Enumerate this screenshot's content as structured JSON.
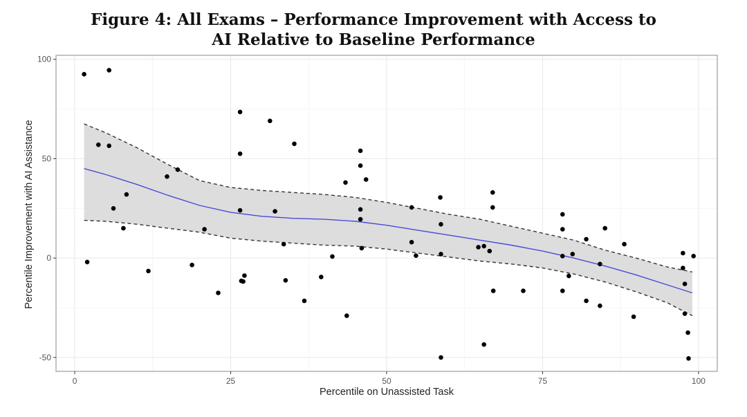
{
  "title": {
    "line1": "Figure 4: All Exams – Performance Improvement with Access to",
    "line2": "AI Relative to Baseline Performance"
  },
  "chart_data": {
    "type": "scatter",
    "title": "Figure 4: All Exams – Performance Improvement with Access to AI Relative to Baseline Performance",
    "xlabel": "Percentile on Unassisted Task",
    "ylabel": "Percentile Improvement with AI Assistance",
    "xlim": [
      -3,
      103
    ],
    "ylim": [
      -57,
      102
    ],
    "x_ticks": [
      0,
      25,
      50,
      75,
      100
    ],
    "y_ticks": [
      -50,
      0,
      50,
      100
    ],
    "grid": true,
    "colors": {
      "points": "#000000",
      "fit_line": "#4a4ad8",
      "ribbon": "#d9d9d9",
      "band_lines": "#333333",
      "panel_border": "#888888",
      "grid": "#ebebeb"
    },
    "points": [
      [
        1.5,
        92.5
      ],
      [
        2,
        -2
      ],
      [
        3.8,
        57
      ],
      [
        5.5,
        94.5
      ],
      [
        5.5,
        56.5
      ],
      [
        6.2,
        25
      ],
      [
        7.8,
        15
      ],
      [
        8.3,
        32
      ],
      [
        11.8,
        -6.5
      ],
      [
        14.8,
        41
      ],
      [
        16.5,
        44.5
      ],
      [
        18.8,
        -3.5
      ],
      [
        20.8,
        14.5
      ],
      [
        23,
        -17.5
      ],
      [
        26.5,
        24
      ],
      [
        26.5,
        52.5
      ],
      [
        26.5,
        73.5
      ],
      [
        26.7,
        -11.5
      ],
      [
        27,
        -11.8
      ],
      [
        27.2,
        -8.8
      ],
      [
        31.3,
        69
      ],
      [
        32.1,
        23.5
      ],
      [
        33.5,
        7
      ],
      [
        33.8,
        -11.2
      ],
      [
        35.2,
        57.5
      ],
      [
        36.8,
        -21.5
      ],
      [
        39.5,
        -9.5
      ],
      [
        41.3,
        0.8
      ],
      [
        43.4,
        38
      ],
      [
        43.6,
        -29
      ],
      [
        45.8,
        54
      ],
      [
        45.8,
        46.5
      ],
      [
        45.8,
        24.5
      ],
      [
        45.8,
        19.5
      ],
      [
        46,
        5
      ],
      [
        46.7,
        39.5
      ],
      [
        54,
        25.5
      ],
      [
        54,
        8
      ],
      [
        54.7,
        1.2
      ],
      [
        58.6,
        30.5
      ],
      [
        58.7,
        17
      ],
      [
        58.7,
        2
      ],
      [
        58.7,
        -50
      ],
      [
        64.7,
        5.5
      ],
      [
        65.6,
        6
      ],
      [
        65.6,
        -43.5
      ],
      [
        66.5,
        3.5
      ],
      [
        67,
        33
      ],
      [
        67,
        25.5
      ],
      [
        67.1,
        -16.5
      ],
      [
        71.9,
        -16.5
      ],
      [
        78.2,
        22
      ],
      [
        78.2,
        14.5
      ],
      [
        78.2,
        1
      ],
      [
        78.2,
        -16.5
      ],
      [
        79.2,
        -9
      ],
      [
        79.8,
        2
      ],
      [
        82,
        9.5
      ],
      [
        82,
        -21.5
      ],
      [
        84.2,
        -3
      ],
      [
        84.2,
        -24
      ],
      [
        85,
        15
      ],
      [
        88.1,
        7
      ],
      [
        89.6,
        -29.5
      ],
      [
        97.5,
        2.5
      ],
      [
        97.5,
        -5
      ],
      [
        97.8,
        -13
      ],
      [
        97.8,
        -28
      ],
      [
        98.3,
        -37.5
      ],
      [
        98.4,
        -50.5
      ],
      [
        99.2,
        1
      ]
    ],
    "fit_line": {
      "x": [
        1.5,
        5,
        10,
        15,
        20,
        25,
        30,
        35,
        40,
        45,
        50,
        55,
        60,
        65,
        70,
        75,
        80,
        85,
        90,
        95,
        99
      ],
      "y": [
        45,
        42,
        37,
        31.5,
        26.5,
        23,
        21,
        20,
        19.5,
        18.5,
        16.5,
        14,
        11.5,
        9,
        6.5,
        3.5,
        0,
        -4,
        -8.5,
        -13.5,
        -17.5
      ]
    },
    "band_upper": {
      "x": [
        1.5,
        5,
        10,
        15,
        20,
        25,
        30,
        35,
        40,
        45,
        50,
        55,
        60,
        65,
        70,
        75,
        80,
        85,
        90,
        95,
        99
      ],
      "y": [
        67.5,
        63,
        55.5,
        47,
        39,
        35.5,
        34,
        33,
        32,
        30.5,
        28,
        25,
        22,
        19.5,
        16,
        12.5,
        9,
        4,
        0,
        -4.5,
        -7
      ]
    },
    "band_lower": {
      "x": [
        1.5,
        5,
        10,
        15,
        20,
        25,
        30,
        35,
        40,
        45,
        50,
        55,
        60,
        65,
        70,
        75,
        80,
        85,
        90,
        95,
        99
      ],
      "y": [
        19,
        18.5,
        17,
        15,
        13,
        10,
        8.5,
        7.5,
        6.5,
        6,
        4.5,
        2.5,
        0.5,
        -1.5,
        -3,
        -5,
        -8,
        -12,
        -17,
        -22.5,
        -29
      ]
    }
  }
}
